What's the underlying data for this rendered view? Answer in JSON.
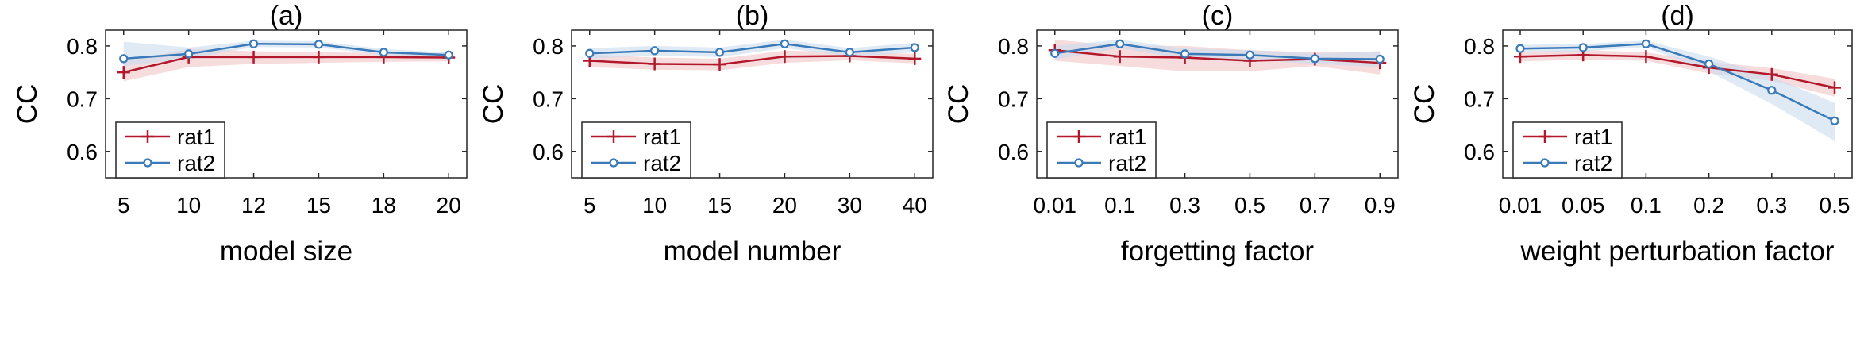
{
  "colors": {
    "rat1": "#b2182b",
    "rat2": "#3a7ab8",
    "rat1_band": "#f1c4c8",
    "rat2_band": "#c9dcef"
  },
  "chart_data": [
    {
      "type": "line",
      "title": "(a)",
      "xlabel": "model size",
      "ylabel": "CC",
      "categories": [
        "5",
        "10",
        "12",
        "15",
        "18",
        "20"
      ],
      "ylim": [
        0.55,
        0.83
      ],
      "yticks": [
        "0.6",
        "0.7",
        "0.8"
      ],
      "legend_position": "bottom-left",
      "series": [
        {
          "name": "rat1",
          "values": [
            0.75,
            0.779,
            0.779,
            0.779,
            0.779,
            0.778
          ],
          "upper": [
            0.77,
            0.795,
            0.79,
            0.788,
            0.787,
            0.786
          ],
          "lower": [
            0.733,
            0.76,
            0.766,
            0.768,
            0.77,
            0.771
          ]
        },
        {
          "name": "rat2",
          "values": [
            0.776,
            0.785,
            0.804,
            0.803,
            0.788,
            0.783
          ],
          "upper": [
            0.808,
            0.797,
            0.81,
            0.809,
            0.794,
            0.788
          ],
          "lower": [
            0.762,
            0.776,
            0.798,
            0.797,
            0.783,
            0.779
          ]
        }
      ]
    },
    {
      "type": "line",
      "title": "(b)",
      "xlabel": "model number",
      "ylabel": "CC",
      "categories": [
        "5",
        "10",
        "15",
        "20",
        "30",
        "40"
      ],
      "ylim": [
        0.55,
        0.83
      ],
      "yticks": [
        "0.6",
        "0.7",
        "0.8"
      ],
      "legend_position": "bottom-left",
      "series": [
        {
          "name": "rat1",
          "values": [
            0.772,
            0.766,
            0.765,
            0.78,
            0.781,
            0.776
          ],
          "upper": [
            0.784,
            0.778,
            0.776,
            0.791,
            0.789,
            0.785
          ],
          "lower": [
            0.76,
            0.755,
            0.754,
            0.768,
            0.773,
            0.767
          ]
        },
        {
          "name": "rat2",
          "values": [
            0.786,
            0.791,
            0.788,
            0.804,
            0.788,
            0.797
          ],
          "upper": [
            0.796,
            0.8,
            0.797,
            0.812,
            0.796,
            0.806
          ],
          "lower": [
            0.776,
            0.782,
            0.779,
            0.796,
            0.78,
            0.788
          ]
        }
      ]
    },
    {
      "type": "line",
      "title": "(c)",
      "xlabel": "forgetting factor",
      "ylabel": "CC",
      "categories": [
        "0.01",
        "0.1",
        "0.3",
        "0.5",
        "0.7",
        "0.9"
      ],
      "ylim": [
        0.55,
        0.83
      ],
      "yticks": [
        "0.6",
        "0.7",
        "0.8"
      ],
      "legend_position": "bottom-left",
      "series": [
        {
          "name": "rat1",
          "values": [
            0.792,
            0.78,
            0.778,
            0.772,
            0.775,
            0.768
          ],
          "upper": [
            0.812,
            0.8,
            0.8,
            0.792,
            0.788,
            0.79
          ],
          "lower": [
            0.772,
            0.762,
            0.752,
            0.752,
            0.762,
            0.746
          ]
        },
        {
          "name": "rat2",
          "values": [
            0.786,
            0.804,
            0.785,
            0.783,
            0.776,
            0.775
          ],
          "upper": [
            0.8,
            0.812,
            0.795,
            0.792,
            0.786,
            0.79
          ],
          "lower": [
            0.774,
            0.796,
            0.775,
            0.774,
            0.766,
            0.76
          ]
        }
      ]
    },
    {
      "type": "line",
      "title": "(d)",
      "xlabel": "weight perturbation factor",
      "ylabel": "CC",
      "categories": [
        "0.01",
        "0.05",
        "0.1",
        "0.2",
        "0.3",
        "0.5"
      ],
      "ylim": [
        0.55,
        0.83
      ],
      "yticks": [
        "0.6",
        "0.7",
        "0.8"
      ],
      "legend_position": "bottom-left",
      "series": [
        {
          "name": "rat1",
          "values": [
            0.78,
            0.783,
            0.78,
            0.759,
            0.746,
            0.721
          ],
          "upper": [
            0.789,
            0.792,
            0.788,
            0.77,
            0.758,
            0.738
          ],
          "lower": [
            0.771,
            0.774,
            0.772,
            0.748,
            0.734,
            0.704
          ]
        },
        {
          "name": "rat2",
          "values": [
            0.795,
            0.797,
            0.804,
            0.766,
            0.716,
            0.658
          ],
          "upper": [
            0.802,
            0.804,
            0.81,
            0.78,
            0.742,
            0.692
          ],
          "lower": [
            0.788,
            0.79,
            0.798,
            0.752,
            0.69,
            0.62
          ]
        }
      ]
    }
  ]
}
